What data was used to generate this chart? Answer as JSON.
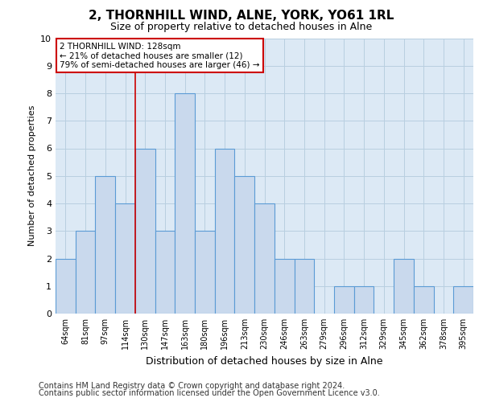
{
  "title": "2, THORNHILL WIND, ALNE, YORK, YO61 1RL",
  "subtitle": "Size of property relative to detached houses in Alne",
  "xlabel": "Distribution of detached houses by size in Alne",
  "ylabel": "Number of detached properties",
  "categories": [
    "64sqm",
    "81sqm",
    "97sqm",
    "114sqm",
    "130sqm",
    "147sqm",
    "163sqm",
    "180sqm",
    "196sqm",
    "213sqm",
    "230sqm",
    "246sqm",
    "263sqm",
    "279sqm",
    "296sqm",
    "312sqm",
    "329sqm",
    "345sqm",
    "362sqm",
    "378sqm",
    "395sqm"
  ],
  "values": [
    2,
    3,
    5,
    4,
    6,
    3,
    8,
    3,
    6,
    5,
    4,
    2,
    2,
    0,
    1,
    1,
    0,
    2,
    1,
    0,
    1
  ],
  "bar_color": "#c9d9ed",
  "bar_edge_color": "#5b9bd5",
  "subject_line_color": "#cc0000",
  "annotation_text": "2 THORNHILL WIND: 128sqm\n← 21% of detached houses are smaller (12)\n79% of semi-detached houses are larger (46) →",
  "annotation_box_color": "#cc0000",
  "ylim": [
    0,
    10
  ],
  "yticks": [
    0,
    1,
    2,
    3,
    4,
    5,
    6,
    7,
    8,
    9,
    10
  ],
  "grid_color": "#b8cfe0",
  "background_color": "#dce9f5",
  "footer1": "Contains HM Land Registry data © Crown copyright and database right 2024.",
  "footer2": "Contains public sector information licensed under the Open Government Licence v3.0.",
  "title_fontsize": 11,
  "subtitle_fontsize": 9,
  "tick_fontsize": 7,
  "ylabel_fontsize": 8,
  "xlabel_fontsize": 9,
  "footer_fontsize": 7,
  "annotation_fontsize": 7.5
}
